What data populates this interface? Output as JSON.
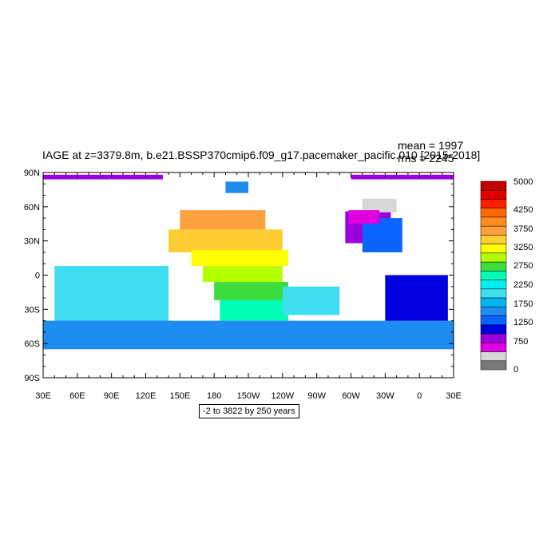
{
  "title": "IAGE at z=3379.8m, b.e21.BSSP370cmip6.f09_g17.pacemaker_pacific.010 [2015-2018]",
  "stats": {
    "mean": "mean = 1997",
    "rms": "rms = 2245"
  },
  "range_label": "-2 to 3822 by 250 years",
  "axes": {
    "lat_ticks": [
      "90N",
      "60N",
      "30N",
      "0",
      "30S",
      "60S",
      "90S"
    ],
    "lon_ticks": [
      "30E",
      "60E",
      "90E",
      "120E",
      "150E",
      "180",
      "150W",
      "120W",
      "90W",
      "60W",
      "30W",
      "0",
      "30E"
    ]
  },
  "colorbar": {
    "labels": [
      "5000",
      "4250",
      "3750",
      "3250",
      "2750",
      "2250",
      "1750",
      "1250",
      "750",
      "0"
    ],
    "colors": [
      "#c00000",
      "#e00000",
      "#ff2000",
      "#ff6800",
      "#ff8c1c",
      "#ffa040",
      "#ffcc33",
      "#ffff00",
      "#b4ff00",
      "#3cdc3c",
      "#00ffb4",
      "#00f0f0",
      "#40dcf0",
      "#00b4f0",
      "#1e8cf0",
      "#0a64ff",
      "#0000e0",
      "#9b00dc",
      "#e100e1",
      "#d7d7d7",
      "#787878"
    ]
  },
  "chart_data": {
    "type": "heatmap",
    "variable": "IAGE",
    "units": "years",
    "xlim": [
      30,
      390
    ],
    "ylim": [
      -90,
      90
    ],
    "contour_min": -2,
    "contour_max": 3822,
    "contour_interval": 250,
    "regions": [
      {
        "lon": [
          30,
          135
        ],
        "lat": [
          84,
          88
        ],
        "value": 500
      },
      {
        "lon": [
          300,
          390
        ],
        "lat": [
          84,
          88
        ],
        "value": 500
      },
      {
        "lon": [
          190,
          210
        ],
        "lat": [
          72,
          82
        ],
        "value": 1250
      },
      {
        "lon": [
          150,
          225
        ],
        "lat": [
          40,
          57
        ],
        "value": 3600
      },
      {
        "lon": [
          140,
          240
        ],
        "lat": [
          20,
          40
        ],
        "value": 3400
      },
      {
        "lon": [
          160,
          245
        ],
        "lat": [
          8,
          22
        ],
        "value": 3150
      },
      {
        "lon": [
          170,
          240
        ],
        "lat": [
          -6,
          8
        ],
        "value": 2900
      },
      {
        "lon": [
          180,
          245
        ],
        "lat": [
          -22,
          -6
        ],
        "value": 2600
      },
      {
        "lon": [
          185,
          245
        ],
        "lat": [
          -40,
          -22
        ],
        "value": 2300
      },
      {
        "lon": [
          40,
          140
        ],
        "lat": [
          -42,
          8
        ],
        "value": 1900
      },
      {
        "lon": [
          240,
          290
        ],
        "lat": [
          -35,
          -10
        ],
        "value": 1900
      },
      {
        "lon": [
          30,
          390
        ],
        "lat": [
          -65,
          -40
        ],
        "value": 1400
      },
      {
        "lon": [
          295,
          335
        ],
        "lat": [
          28,
          56
        ],
        "value": 500
      },
      {
        "lon": [
          310,
          345
        ],
        "lat": [
          20,
          50
        ],
        "value": 1000
      },
      {
        "lon": [
          330,
          385
        ],
        "lat": [
          -40,
          0
        ],
        "value": 900
      },
      {
        "lon": [
          310,
          340
        ],
        "lat": [
          55,
          67
        ],
        "value": 120
      },
      {
        "lon": [
          298,
          325
        ],
        "lat": [
          45,
          57
        ],
        "value": 380
      }
    ]
  }
}
